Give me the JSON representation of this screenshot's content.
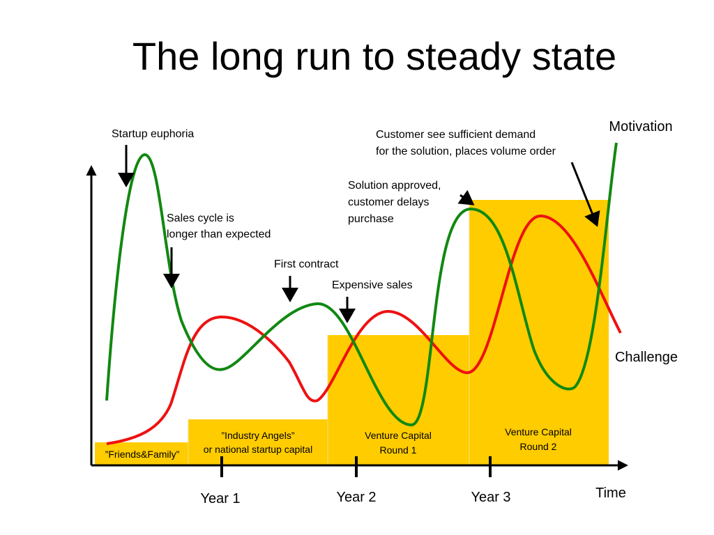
{
  "title": "The long run to steady state",
  "curves": [
    {
      "label": "Motivation"
    },
    {
      "label": "Challenge"
    }
  ],
  "x_axis": {
    "label": "Time",
    "ticks": [
      "Year 1",
      "Year 2",
      "Year 3"
    ]
  },
  "funding": [
    {
      "lines": [
        "”Friends&Family”"
      ]
    },
    {
      "lines": [
        "”Industry Angels”",
        "or national startup capital"
      ]
    },
    {
      "lines": [
        "Venture Capital",
        "Round 1"
      ]
    },
    {
      "lines": [
        "Venture Capital",
        "Round 2"
      ]
    }
  ],
  "annotations": [
    {
      "lines": [
        "Startup euphoria"
      ]
    },
    {
      "lines": [
        "Sales cycle is",
        "longer than expected"
      ]
    },
    {
      "lines": [
        "First contract"
      ]
    },
    {
      "lines": [
        "Expensive sales"
      ]
    },
    {
      "lines": [
        "Solution approved,",
        "customer delays",
        "purchase"
      ]
    },
    {
      "lines": [
        "Customer see sufficient demand",
        "for the solution, places volume order"
      ]
    }
  ]
}
